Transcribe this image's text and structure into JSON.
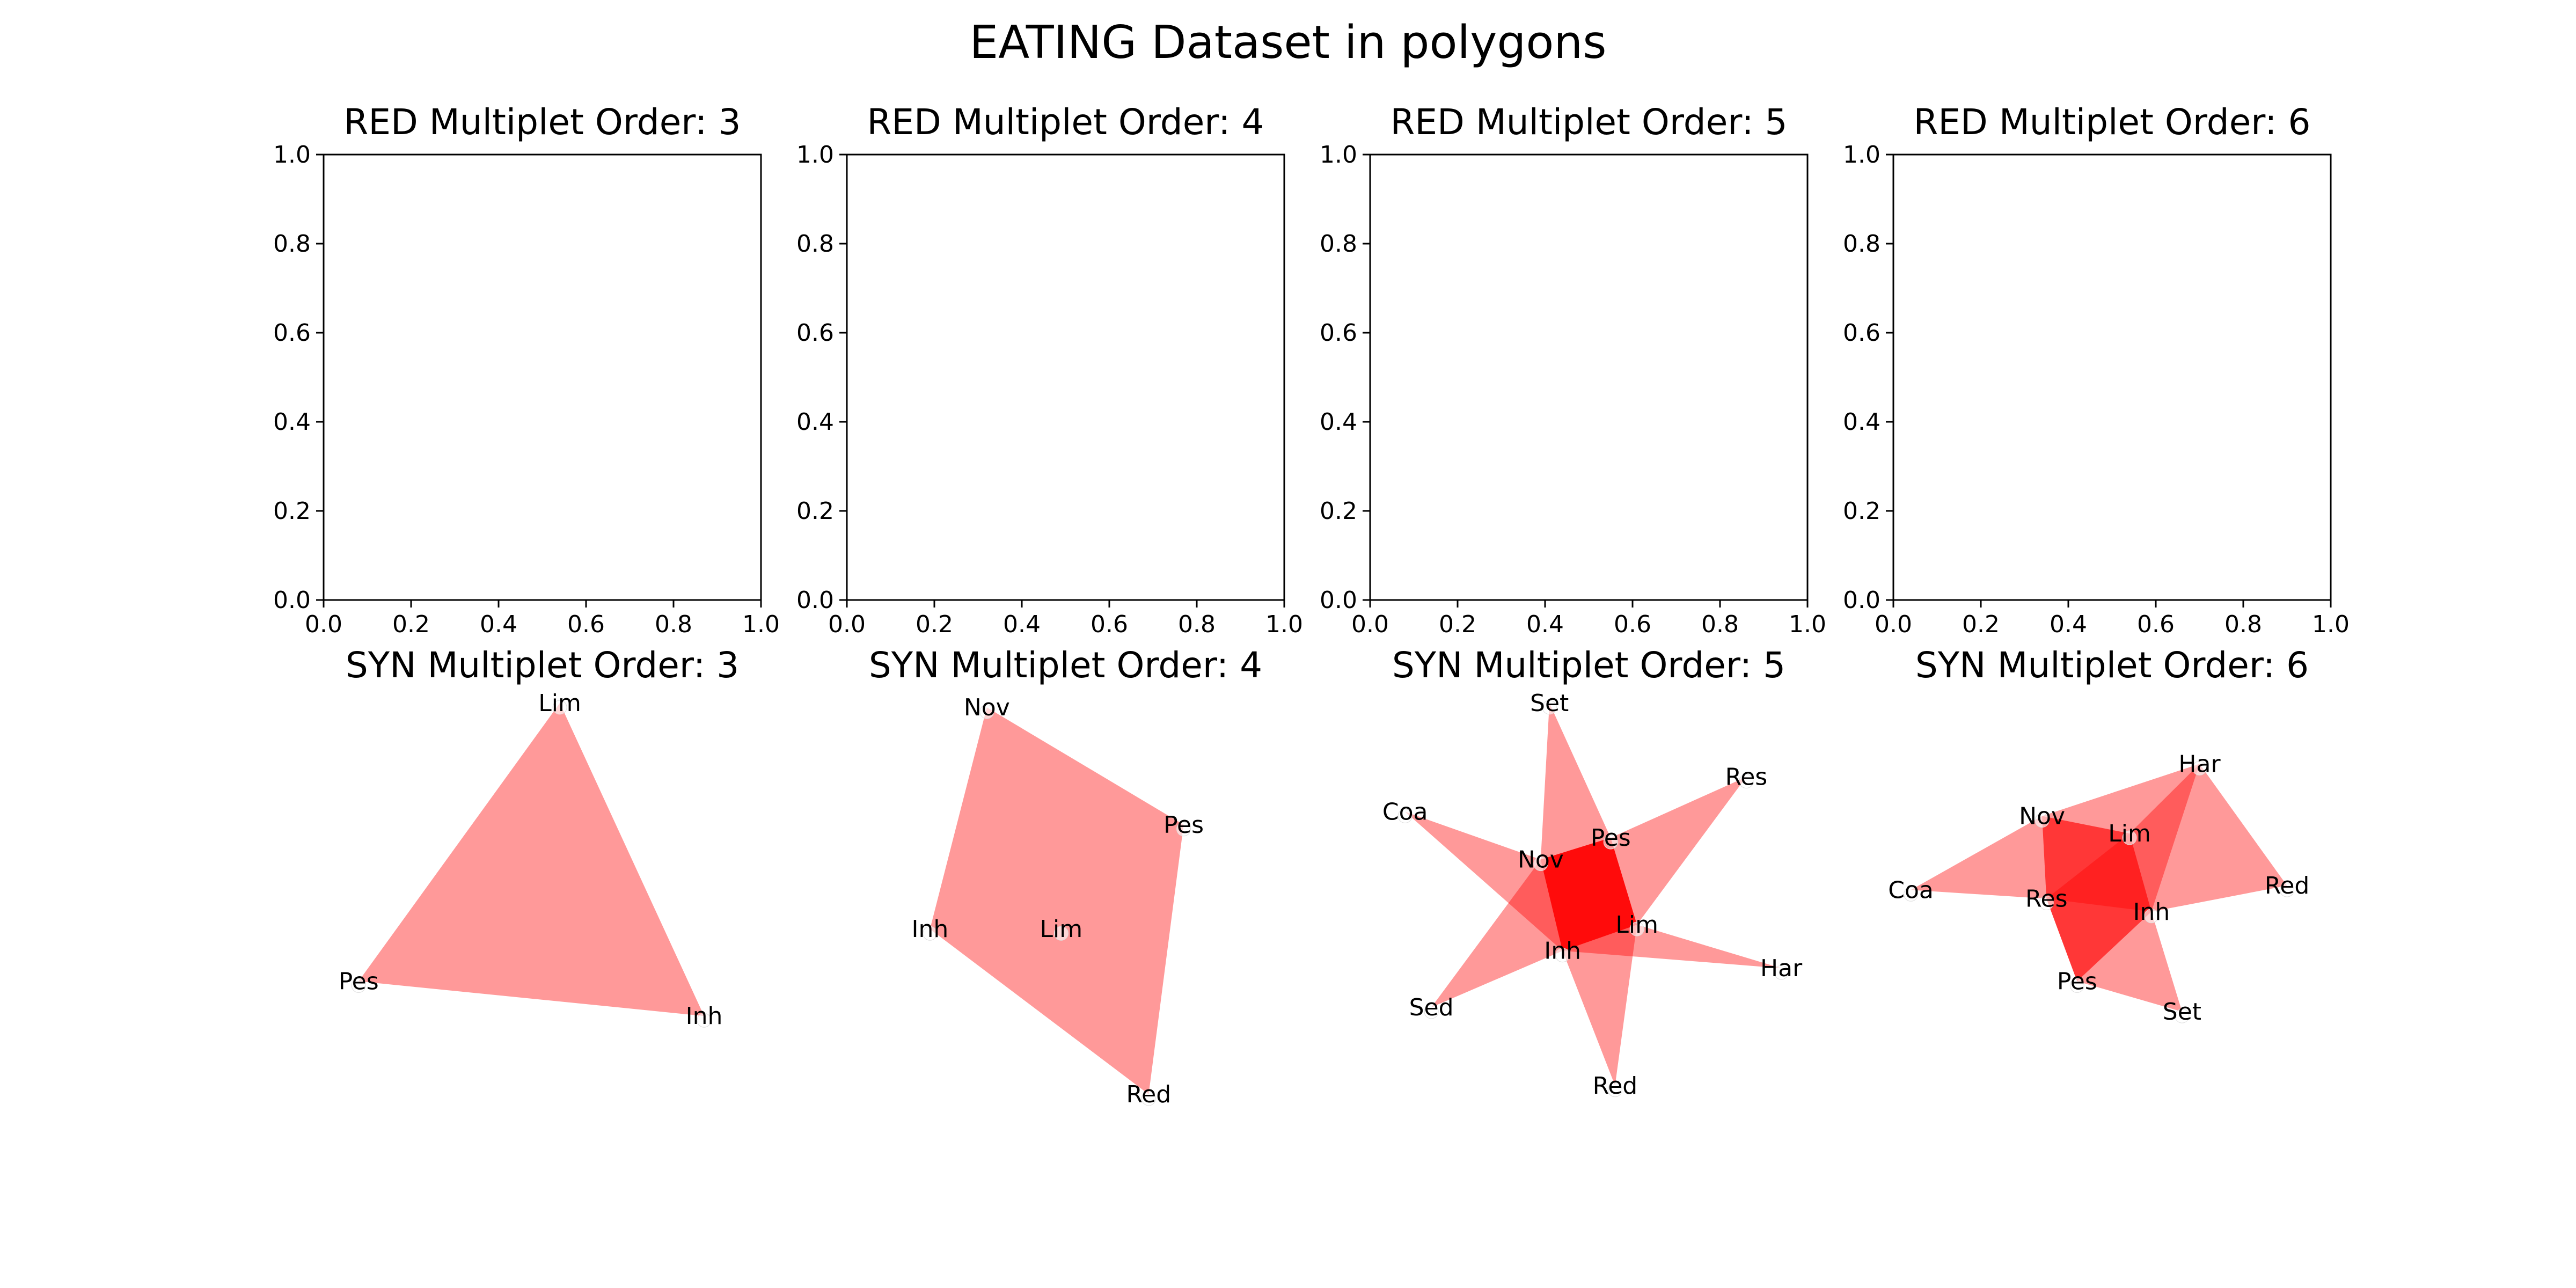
{
  "figure": {
    "title": "EATING Dataset in polygons"
  },
  "chart_data": [
    {
      "type": "polygon-network",
      "title": "RED Multiplet Order: 3",
      "xlim": [
        0,
        1
      ],
      "ylim": [
        0,
        1
      ],
      "xticks": [
        "0.0",
        "0.2",
        "0.4",
        "0.6",
        "0.8",
        "1.0"
      ],
      "yticks": [
        "0.0",
        "0.2",
        "0.4",
        "0.6",
        "0.8",
        "1.0"
      ],
      "axes_visible": true,
      "nodes": [],
      "polygons": []
    },
    {
      "type": "polygon-network",
      "title": "RED Multiplet Order: 4",
      "xlim": [
        0,
        1
      ],
      "ylim": [
        0,
        1
      ],
      "xticks": [
        "0.0",
        "0.2",
        "0.4",
        "0.6",
        "0.8",
        "1.0"
      ],
      "yticks": [
        "0.0",
        "0.2",
        "0.4",
        "0.6",
        "0.8",
        "1.0"
      ],
      "axes_visible": true,
      "nodes": [],
      "polygons": []
    },
    {
      "type": "polygon-network",
      "title": "RED Multiplet Order: 5",
      "xlim": [
        0,
        1
      ],
      "ylim": [
        0,
        1
      ],
      "xticks": [
        "0.0",
        "0.2",
        "0.4",
        "0.6",
        "0.8",
        "1.0"
      ],
      "yticks": [
        "0.0",
        "0.2",
        "0.4",
        "0.6",
        "0.8",
        "1.0"
      ],
      "axes_visible": true,
      "nodes": [],
      "polygons": []
    },
    {
      "type": "polygon-network",
      "title": "RED Multiplet Order: 6",
      "xlim": [
        0,
        1
      ],
      "ylim": [
        0,
        1
      ],
      "xticks": [
        "0.0",
        "0.2",
        "0.4",
        "0.6",
        "0.8",
        "1.0"
      ],
      "yticks": [
        "0.0",
        "0.2",
        "0.4",
        "0.6",
        "0.8",
        "1.0"
      ],
      "axes_visible": true,
      "nodes": [],
      "polygons": []
    },
    {
      "type": "polygon-network",
      "title": "SYN Multiplet Order: 3",
      "axes_visible": false,
      "fill_color": "#ff0000",
      "fill_opacity": 0.4,
      "nodes": [
        {
          "name": "Lim",
          "x": 0.54,
          "y": 1.0
        },
        {
          "name": "Pes",
          "x": 0.08,
          "y": 0.36
        },
        {
          "name": "Inh",
          "x": 0.87,
          "y": 0.28
        }
      ],
      "polygons": [
        [
          "Lim",
          "Pes",
          "Inh"
        ]
      ]
    },
    {
      "type": "polygon-network",
      "title": "SYN Multiplet Order: 4",
      "axes_visible": false,
      "fill_color": "#ff0000",
      "fill_opacity": 0.4,
      "nodes": [
        {
          "name": "Nov",
          "x": 0.32,
          "y": 0.99
        },
        {
          "name": "Pes",
          "x": 0.77,
          "y": 0.72
        },
        {
          "name": "Inh",
          "x": 0.19,
          "y": 0.48
        },
        {
          "name": "Lim",
          "x": 0.49,
          "y": 0.48
        },
        {
          "name": "Red",
          "x": 0.69,
          "y": 0.1
        }
      ],
      "polygons": [
        [
          "Nov",
          "Pes",
          "Red",
          "Inh"
        ]
      ]
    },
    {
      "type": "polygon-network",
      "title": "SYN Multiplet Order: 5",
      "axes_visible": false,
      "fill_color": "#ff0000",
      "fill_opacity": 0.4,
      "nodes": [
        {
          "name": "Set",
          "x": 0.41,
          "y": 1.0
        },
        {
          "name": "Res",
          "x": 0.86,
          "y": 0.83
        },
        {
          "name": "Coa",
          "x": 0.08,
          "y": 0.75
        },
        {
          "name": "Pes",
          "x": 0.55,
          "y": 0.69
        },
        {
          "name": "Nov",
          "x": 0.39,
          "y": 0.64
        },
        {
          "name": "Lim",
          "x": 0.61,
          "y": 0.49
        },
        {
          "name": "Inh",
          "x": 0.44,
          "y": 0.43
        },
        {
          "name": "Har",
          "x": 0.94,
          "y": 0.39
        },
        {
          "name": "Sed",
          "x": 0.14,
          "y": 0.3
        },
        {
          "name": "Red",
          "x": 0.56,
          "y": 0.12
        }
      ],
      "polygons": [
        [
          "Set",
          "Pes",
          "Lim",
          "Inh",
          "Nov"
        ],
        [
          "Res",
          "Lim",
          "Inh",
          "Nov",
          "Pes"
        ],
        [
          "Coa",
          "Nov",
          "Pes",
          "Lim",
          "Inh"
        ],
        [
          "Har",
          "Inh",
          "Nov",
          "Pes",
          "Lim"
        ],
        [
          "Red",
          "Inh",
          "Nov",
          "Pes",
          "Lim"
        ],
        [
          "Sed",
          "Inh",
          "Lim",
          "Pes",
          "Nov"
        ]
      ]
    },
    {
      "type": "polygon-network",
      "title": "SYN Multiplet Order: 6",
      "axes_visible": false,
      "fill_color": "#ff0000",
      "fill_opacity": 0.4,
      "nodes": [
        {
          "name": "Har",
          "x": 0.7,
          "y": 0.86
        },
        {
          "name": "Nov",
          "x": 0.34,
          "y": 0.74
        },
        {
          "name": "Lim",
          "x": 0.54,
          "y": 0.7
        },
        {
          "name": "Red",
          "x": 0.9,
          "y": 0.58
        },
        {
          "name": "Coa",
          "x": 0.04,
          "y": 0.57
        },
        {
          "name": "Res",
          "x": 0.35,
          "y": 0.55
        },
        {
          "name": "Inh",
          "x": 0.59,
          "y": 0.52
        },
        {
          "name": "Pes",
          "x": 0.42,
          "y": 0.36
        },
        {
          "name": "Set",
          "x": 0.66,
          "y": 0.29
        }
      ],
      "polygons": [
        [
          "Nov",
          "Lim",
          "Har",
          "Red",
          "Inh",
          "Res"
        ],
        [
          "Coa",
          "Nov",
          "Lim",
          "Inh",
          "Pes",
          "Res"
        ],
        [
          "Nov",
          "Lim",
          "Inh",
          "Set",
          "Pes",
          "Res"
        ],
        [
          "Nov",
          "Har",
          "Inh",
          "Pes",
          "Res",
          "Lim"
        ]
      ]
    }
  ]
}
